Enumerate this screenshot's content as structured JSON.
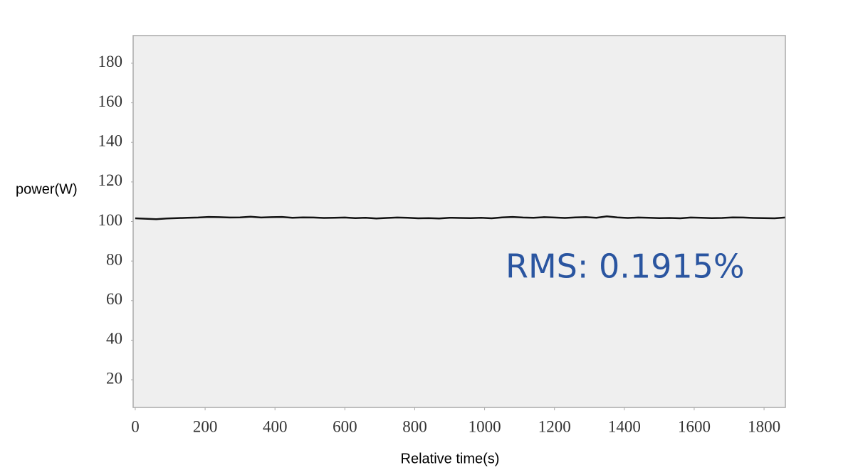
{
  "chart_data": {
    "type": "line",
    "y_label": "power(W)",
    "x_label": "Relative time(s)",
    "annotation": "RMS: 0.1915%",
    "x": [
      0,
      30,
      60,
      90,
      120,
      150,
      180,
      210,
      240,
      270,
      300,
      330,
      360,
      390,
      420,
      450,
      480,
      510,
      540,
      570,
      600,
      630,
      660,
      690,
      720,
      750,
      780,
      810,
      840,
      870,
      900,
      930,
      960,
      990,
      1020,
      1050,
      1080,
      1110,
      1140,
      1170,
      1200,
      1230,
      1260,
      1290,
      1320,
      1350,
      1380,
      1410,
      1440,
      1470,
      1500,
      1530,
      1560,
      1590,
      1620,
      1650,
      1680,
      1710,
      1740,
      1770,
      1800,
      1830,
      1860
    ],
    "values": [
      101.6,
      101.4,
      101.2,
      101.5,
      101.7,
      101.9,
      102.0,
      102.3,
      102.2,
      102.0,
      102.1,
      102.4,
      102.0,
      102.2,
      102.3,
      101.9,
      102.1,
      102.0,
      101.8,
      101.9,
      102.0,
      101.7,
      101.9,
      101.5,
      101.8,
      102.0,
      101.9,
      101.6,
      101.7,
      101.5,
      101.9,
      101.8,
      101.7,
      101.9,
      101.6,
      102.1,
      102.3,
      102.0,
      101.9,
      102.2,
      102.0,
      101.8,
      102.1,
      102.2,
      101.9,
      102.6,
      102.1,
      101.8,
      102.0,
      101.9,
      101.7,
      101.8,
      101.6,
      102.0,
      101.9,
      101.7,
      101.8,
      102.1,
      102.0,
      101.8,
      101.7,
      101.6,
      102.0
    ],
    "color": "#111111",
    "xlim": [
      -6,
      1861
    ],
    "ylim": [
      6,
      194
    ],
    "xticks": [
      0,
      200,
      400,
      600,
      800,
      1000,
      1200,
      1400,
      1600,
      1800
    ],
    "yticks": [
      20,
      40,
      60,
      80,
      100,
      120,
      140,
      160,
      180
    ]
  }
}
